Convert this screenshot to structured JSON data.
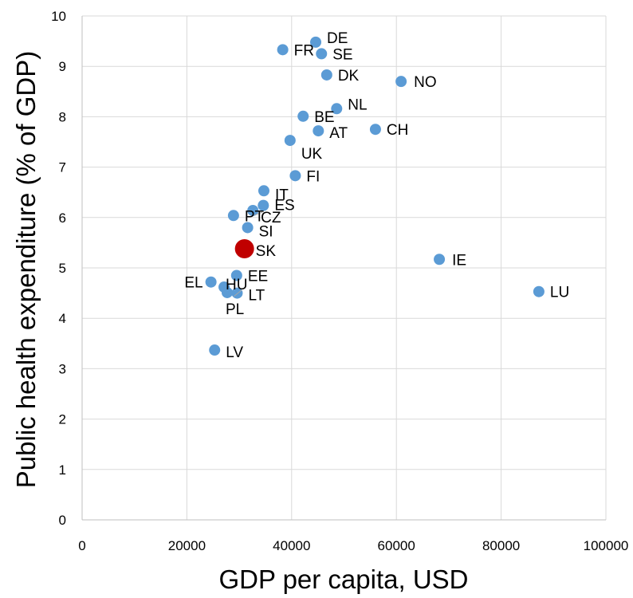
{
  "chart_data": {
    "type": "scatter",
    "xlabel": "GDP per capita, USD",
    "ylabel": "Public health expenditure (% of GDP)",
    "xlim": [
      0,
      100000
    ],
    "ylim": [
      0,
      10
    ],
    "x_ticks": [
      0,
      20000,
      40000,
      60000,
      80000,
      100000
    ],
    "x_tick_labels": [
      "0",
      "20000",
      "40000",
      "60000",
      "80000",
      "100000"
    ],
    "y_ticks": [
      0,
      1,
      2,
      3,
      4,
      5,
      6,
      7,
      8,
      9,
      10
    ],
    "y_tick_labels": [
      "0",
      "1",
      "2",
      "3",
      "4",
      "5",
      "6",
      "7",
      "8",
      "9",
      "10"
    ],
    "grid": true,
    "colors": {
      "point": "#5b9bd5",
      "highlight": "#c00000",
      "grid": "#d9d9d9"
    },
    "points": [
      {
        "label": "DE",
        "x": 44600,
        "y": 9.48
      },
      {
        "label": "SE",
        "x": 45700,
        "y": 9.25
      },
      {
        "label": "FR",
        "x": 38300,
        "y": 9.33
      },
      {
        "label": "DK",
        "x": 46700,
        "y": 8.83
      },
      {
        "label": "NO",
        "x": 60900,
        "y": 8.7
      },
      {
        "label": "NL",
        "x": 48600,
        "y": 8.16
      },
      {
        "label": "BE",
        "x": 42200,
        "y": 8.01
      },
      {
        "label": "AT",
        "x": 45100,
        "y": 7.72
      },
      {
        "label": "CH",
        "x": 56000,
        "y": 7.75
      },
      {
        "label": "UK",
        "x": 39700,
        "y": 7.53
      },
      {
        "label": "FI",
        "x": 40700,
        "y": 6.83
      },
      {
        "label": "IT",
        "x": 34700,
        "y": 6.53
      },
      {
        "label": "ES",
        "x": 34600,
        "y": 6.24
      },
      {
        "label": "CZ",
        "x": 32600,
        "y": 6.14
      },
      {
        "label": "PT",
        "x": 28900,
        "y": 6.04
      },
      {
        "label": "SI",
        "x": 31600,
        "y": 5.8
      },
      {
        "label": "SK",
        "x": 31000,
        "y": 5.38,
        "highlight": true
      },
      {
        "label": "IE",
        "x": 68200,
        "y": 5.17
      },
      {
        "label": "EE",
        "x": 29500,
        "y": 4.85
      },
      {
        "label": "EL",
        "x": 24600,
        "y": 4.72
      },
      {
        "label": "HU",
        "x": 27100,
        "y": 4.62
      },
      {
        "label": "PL",
        "x": 27700,
        "y": 4.51
      },
      {
        "label": "LT",
        "x": 29600,
        "y": 4.5
      },
      {
        "label": "LU",
        "x": 87200,
        "y": 4.53
      },
      {
        "label": "LV",
        "x": 25300,
        "y": 3.37
      }
    ]
  }
}
